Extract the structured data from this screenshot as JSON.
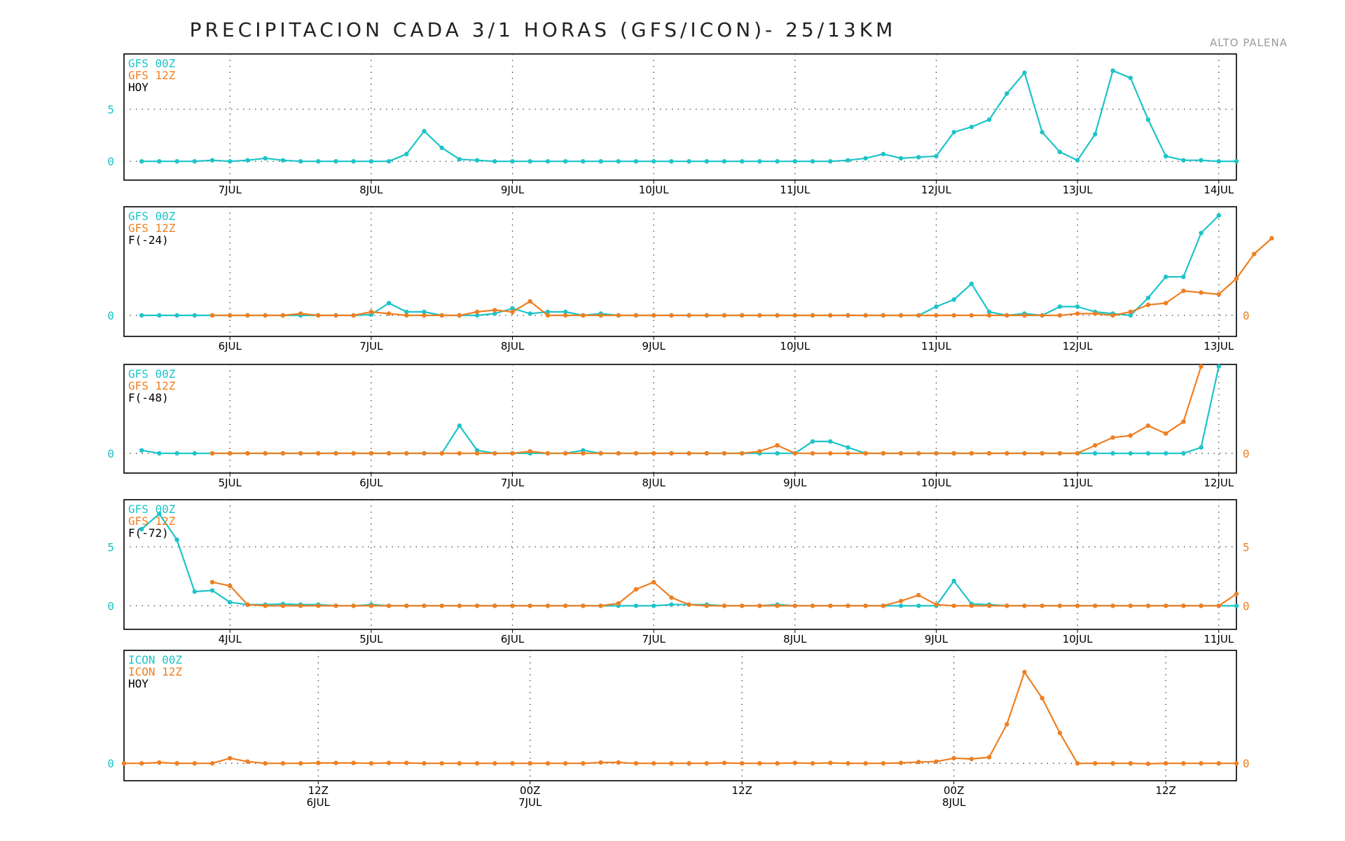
{
  "title": "PRECIPITACION CADA 3/1 HORAS (GFS/ICON)- 25/13KM",
  "location": "ALTO PALENA",
  "colors": {
    "cyan": "#1cc4c8",
    "orange": "#ee7f22",
    "text": "#000000",
    "grid": "#444444"
  },
  "chart_data": [
    {
      "type": "line",
      "legend": [
        "GFS 00Z",
        "GFS 12Z",
        "HOY"
      ],
      "x_start": 0,
      "x_end": 63,
      "x_unit": "3h step",
      "ylim": [
        -1.8,
        10.3
      ],
      "left_ticks": [
        "0",
        "5"
      ],
      "right_ticks": [],
      "grid": true,
      "xticks": [
        {
          "x": 6,
          "label": "7JUL"
        },
        {
          "x": 14,
          "label": "8JUL"
        },
        {
          "x": 22,
          "label": "9JUL"
        },
        {
          "x": 30,
          "label": "10JUL"
        },
        {
          "x": 38,
          "label": "11JUL"
        },
        {
          "x": 46,
          "label": "12JUL"
        },
        {
          "x": 54,
          "label": "13JUL"
        },
        {
          "x": 62,
          "label": "14JUL"
        }
      ],
      "series": [
        {
          "name": "GFS 00Z",
          "color": "cyan",
          "x0": 1,
          "values": [
            0,
            0,
            0,
            0,
            0.1,
            0,
            0.1,
            0.3,
            0.1,
            0,
            0,
            0,
            0,
            0,
            0,
            0.7,
            2.9,
            1.3,
            0.2,
            0.1,
            0,
            0,
            0,
            0,
            0,
            0,
            0,
            0,
            0,
            0,
            0,
            0,
            0,
            0,
            0,
            0,
            0,
            0,
            0,
            0,
            0.1,
            0.3,
            0.7,
            0.3,
            0.4,
            0.5,
            2.8,
            3.3,
            4.0,
            6.5,
            8.5,
            2.8,
            0.9,
            0.1,
            2.6,
            8.7,
            8.0,
            4.0,
            0.5,
            0.1,
            0.1,
            0,
            0
          ]
        }
      ]
    },
    {
      "type": "line",
      "legend": [
        "GFS 00Z",
        "GFS 12Z",
        "F(-24)"
      ],
      "x_start": 0,
      "x_end": 63,
      "x_unit": "3h step",
      "ylim": [
        -1.2,
        6.2
      ],
      "left_ticks": [
        "0"
      ],
      "right_ticks": [
        "0"
      ],
      "grid": true,
      "xticks": [
        {
          "x": 6,
          "label": "6JUL"
        },
        {
          "x": 14,
          "label": "7JUL"
        },
        {
          "x": 22,
          "label": "8JUL"
        },
        {
          "x": 30,
          "label": "9JUL"
        },
        {
          "x": 38,
          "label": "10JUL"
        },
        {
          "x": 46,
          "label": "11JUL"
        },
        {
          "x": 54,
          "label": "12JUL"
        },
        {
          "x": 62,
          "label": "13JUL"
        }
      ],
      "series": [
        {
          "name": "GFS 00Z",
          "color": "cyan",
          "x0": 1,
          "values": [
            0,
            0,
            0,
            0,
            0,
            0,
            0,
            0,
            0,
            0,
            0,
            0,
            0,
            0.05,
            0.7,
            0.2,
            0.2,
            0,
            0,
            0,
            0.1,
            0.4,
            0.1,
            0.2,
            0.2,
            0,
            0.1,
            0,
            0,
            0,
            0,
            0,
            0,
            0,
            0,
            0,
            0,
            0,
            0,
            0,
            0,
            0,
            0,
            0,
            0,
            0.5,
            0.9,
            1.8,
            0.2,
            0,
            0.1,
            0,
            0.5,
            0.5,
            0.2,
            0.1,
            0,
            1.0,
            2.2,
            2.2,
            4.7,
            5.7
          ]
        },
        {
          "name": "GFS 12Z",
          "color": "orange",
          "x0": 5,
          "values": [
            0,
            0,
            0,
            0,
            0,
            0.1,
            0,
            0,
            0,
            0.2,
            0.1,
            0,
            0,
            0,
            0,
            0.2,
            0.3,
            0.2,
            0.8,
            0,
            0,
            0,
            0,
            0,
            0,
            0,
            0,
            0,
            0,
            0,
            0,
            0,
            0,
            0,
            0,
            0,
            0,
            0,
            0,
            0,
            0,
            0,
            0,
            0,
            0,
            0,
            0,
            0,
            0,
            0.1,
            0.1,
            0,
            0.2,
            0.6,
            0.7,
            1.4,
            1.3,
            1.2,
            2.1,
            3.5,
            4.4
          ]
        }
      ]
    },
    {
      "type": "line",
      "legend": [
        "GFS 00Z",
        "GFS 12Z",
        "F(-48)"
      ],
      "x_start": 0,
      "x_end": 63,
      "x_unit": "3h step",
      "ylim": [
        -1.0,
        4.5
      ],
      "left_ticks": [
        "0"
      ],
      "right_ticks": [
        "0"
      ],
      "grid": true,
      "xticks": [
        {
          "x": 6,
          "label": "5JUL"
        },
        {
          "x": 14,
          "label": "6JUL"
        },
        {
          "x": 22,
          "label": "7JUL"
        },
        {
          "x": 30,
          "label": "8JUL"
        },
        {
          "x": 38,
          "label": "9JUL"
        },
        {
          "x": 46,
          "label": "10JUL"
        },
        {
          "x": 54,
          "label": "11JUL"
        },
        {
          "x": 62,
          "label": "12JUL"
        }
      ],
      "series": [
        {
          "name": "GFS 00Z",
          "color": "cyan",
          "x0": 1,
          "values": [
            0.15,
            0,
            0,
            0,
            0,
            0,
            0,
            0,
            0,
            0,
            0,
            0,
            0,
            0,
            0,
            0,
            0,
            0,
            1.4,
            0.15,
            0,
            0,
            0,
            0,
            0,
            0.15,
            0,
            0,
            0,
            0,
            0,
            0,
            0,
            0,
            0,
            0,
            0,
            0,
            0.6,
            0.6,
            0.3,
            0,
            0,
            0,
            0,
            0,
            0,
            0,
            0,
            0,
            0,
            0,
            0,
            0,
            0,
            0,
            0,
            0,
            0,
            0,
            0.3,
            4.4
          ]
        },
        {
          "name": "GFS 12Z",
          "color": "orange",
          "x0": 5,
          "values": [
            0,
            0,
            0,
            0,
            0,
            0,
            0,
            0,
            0,
            0,
            0,
            0,
            0,
            0,
            0,
            0,
            0,
            0,
            0.1,
            0,
            0,
            0,
            0,
            0,
            0,
            0,
            0,
            0,
            0,
            0,
            0,
            0.1,
            0.4,
            0,
            0,
            0,
            0,
            0,
            0,
            0,
            0,
            0,
            0,
            0,
            0,
            0,
            0,
            0,
            0,
            0,
            0.4,
            0.8,
            0.9,
            1.4,
            1.0,
            1.6,
            4.4
          ]
        }
      ]
    },
    {
      "type": "line",
      "legend": [
        "GFS 00Z",
        "GFS 12Z",
        "F(-72)"
      ],
      "x_start": 0,
      "x_end": 63,
      "x_unit": "3h step",
      "ylim": [
        -2.0,
        9.0
      ],
      "left_ticks": [
        "0",
        "5"
      ],
      "right_ticks": [
        "0",
        "5"
      ],
      "grid": true,
      "xticks": [
        {
          "x": 6,
          "label": "4JUL"
        },
        {
          "x": 14,
          "label": "5JUL"
        },
        {
          "x": 22,
          "label": "6JUL"
        },
        {
          "x": 30,
          "label": "7JUL"
        },
        {
          "x": 38,
          "label": "8JUL"
        },
        {
          "x": 46,
          "label": "9JUL"
        },
        {
          "x": 54,
          "label": "10JUL"
        },
        {
          "x": 62,
          "label": "11JUL"
        }
      ],
      "series": [
        {
          "name": "GFS 00Z",
          "color": "cyan",
          "x0": 1,
          "values": [
            6.5,
            7.8,
            5.6,
            1.2,
            1.3,
            0.3,
            0.1,
            0.1,
            0.15,
            0.1,
            0.1,
            0,
            0,
            0.1,
            0,
            0,
            0,
            0,
            0,
            0,
            0,
            0,
            0,
            0,
            0,
            0,
            0,
            0,
            0,
            0,
            0.1,
            0.1,
            0.1,
            0,
            0,
            0,
            0.1,
            0,
            0,
            0,
            0,
            0,
            0,
            0,
            0,
            0,
            2.1,
            0.15,
            0.1,
            0,
            0,
            0,
            0,
            0,
            0,
            0,
            0,
            0,
            0,
            0,
            0,
            0,
            0
          ]
        },
        {
          "name": "GFS 12Z",
          "color": "orange",
          "x0": 5,
          "values": [
            2.0,
            1.7,
            0.1,
            0,
            0,
            0,
            0,
            0,
            0,
            0,
            0,
            0,
            0,
            0,
            0,
            0,
            0,
            0,
            0,
            0,
            0,
            0,
            0,
            0.2,
            1.4,
            2.0,
            0.7,
            0.1,
            0,
            0,
            0,
            0,
            0,
            0,
            0,
            0,
            0,
            0,
            0,
            0.4,
            0.9,
            0.1,
            0,
            0,
            0,
            0,
            0,
            0,
            0,
            0,
            0,
            0,
            0,
            0,
            0,
            0,
            0,
            0,
            1.0
          ]
        }
      ]
    },
    {
      "type": "line",
      "legend": [
        "ICON 00Z",
        "ICON 12Z",
        "HOY"
      ],
      "x_start": 0,
      "x_end": 63,
      "x_unit": "1h step",
      "ylim": [
        -2.0,
        13.0
      ],
      "left_ticks": [
        "0"
      ],
      "right_ticks": [
        "0"
      ],
      "grid": true,
      "xticks": [
        {
          "x": 11,
          "label": "12Z",
          "sub": "6JUL"
        },
        {
          "x": 23,
          "label": "00Z",
          "sub": "7JUL"
        },
        {
          "x": 35,
          "label": "12Z"
        },
        {
          "x": 47,
          "label": "00Z",
          "sub": "8JUL"
        },
        {
          "x": 59,
          "label": "12Z"
        }
      ],
      "series": [
        {
          "name": "ICON 12Z",
          "color": "orange",
          "x0": 0,
          "values": [
            0,
            0,
            0.1,
            0,
            0,
            0,
            0.6,
            0.2,
            0,
            0,
            0,
            0.05,
            0.05,
            0.05,
            0,
            0.05,
            0.05,
            0,
            0,
            0,
            0,
            0,
            0,
            0,
            0,
            0,
            0,
            0.1,
            0.1,
            0,
            0,
            0,
            0,
            0,
            0.05,
            0,
            0,
            0,
            0.05,
            0,
            0.05,
            0,
            0,
            0,
            0.05,
            0.15,
            0.2,
            0.6,
            0.5,
            0.7,
            4.5,
            10.5,
            7.5,
            3.5,
            0,
            0,
            0,
            0,
            -0.05,
            0,
            0,
            0,
            0,
            0
          ]
        }
      ]
    }
  ]
}
